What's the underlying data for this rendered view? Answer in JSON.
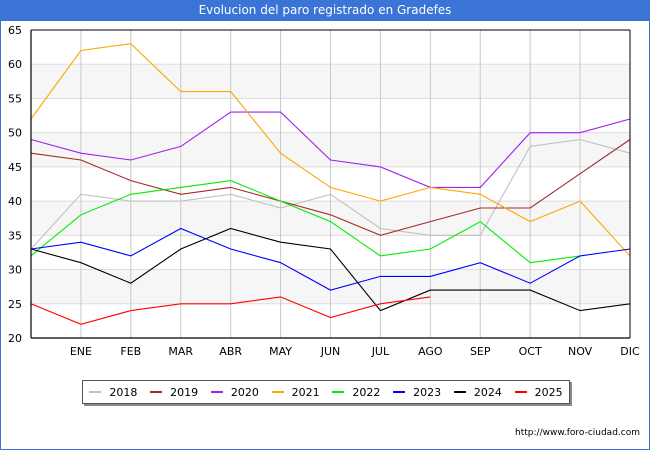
{
  "window": {
    "title": "Evolucion del paro registrado en Gradefes",
    "credit": "http://www.foro-ciudad.com"
  },
  "chart_data": {
    "type": "line",
    "title": "Evolucion del paro registrado en Gradefes",
    "xlabel": "",
    "ylabel": "",
    "x": [
      "",
      "ENE",
      "FEB",
      "MAR",
      "ABR",
      "MAY",
      "JUN",
      "JUL",
      "AGO",
      "SEP",
      "OCT",
      "NOV",
      "DIC"
    ],
    "ylim": [
      20,
      65
    ],
    "yticks": [
      20,
      25,
      30,
      35,
      40,
      45,
      50,
      55,
      60,
      65
    ],
    "grid": true,
    "legend_position": "bottom",
    "series": [
      {
        "name": "2018",
        "color": "#c0c0c0",
        "values": [
          33,
          41,
          40,
          40,
          41,
          39,
          41,
          36,
          35,
          35,
          48,
          49,
          47
        ]
      },
      {
        "name": "2019",
        "color": "#a52a2a",
        "values": [
          47,
          46,
          43,
          41,
          42,
          40,
          38,
          35,
          37,
          39,
          39,
          44,
          49
        ]
      },
      {
        "name": "2020",
        "color": "#a020f0",
        "values": [
          49,
          47,
          46,
          48,
          53,
          53,
          46,
          45,
          42,
          42,
          50,
          50,
          52
        ]
      },
      {
        "name": "2021",
        "color": "#ffa500",
        "values": [
          52,
          62,
          63,
          56,
          56,
          47,
          42,
          40,
          42,
          41,
          37,
          40,
          32
        ]
      },
      {
        "name": "2022",
        "color": "#00ee00",
        "values": [
          32,
          38,
          41,
          42,
          43,
          40,
          37,
          32,
          33,
          37,
          31,
          32,
          null
        ]
      },
      {
        "name": "2023",
        "color": "#0000ff",
        "values": [
          33,
          34,
          32,
          36,
          33,
          31,
          27,
          29,
          29,
          31,
          28,
          32,
          33
        ]
      },
      {
        "name": "2024",
        "color": "#000000",
        "values": [
          33,
          31,
          28,
          33,
          36,
          34,
          33,
          24,
          27,
          27,
          27,
          24,
          25
        ]
      },
      {
        "name": "2025",
        "color": "#ff0000",
        "values": [
          25,
          22,
          24,
          25,
          25,
          26,
          23,
          25,
          26,
          null,
          null,
          null,
          null
        ]
      }
    ]
  }
}
